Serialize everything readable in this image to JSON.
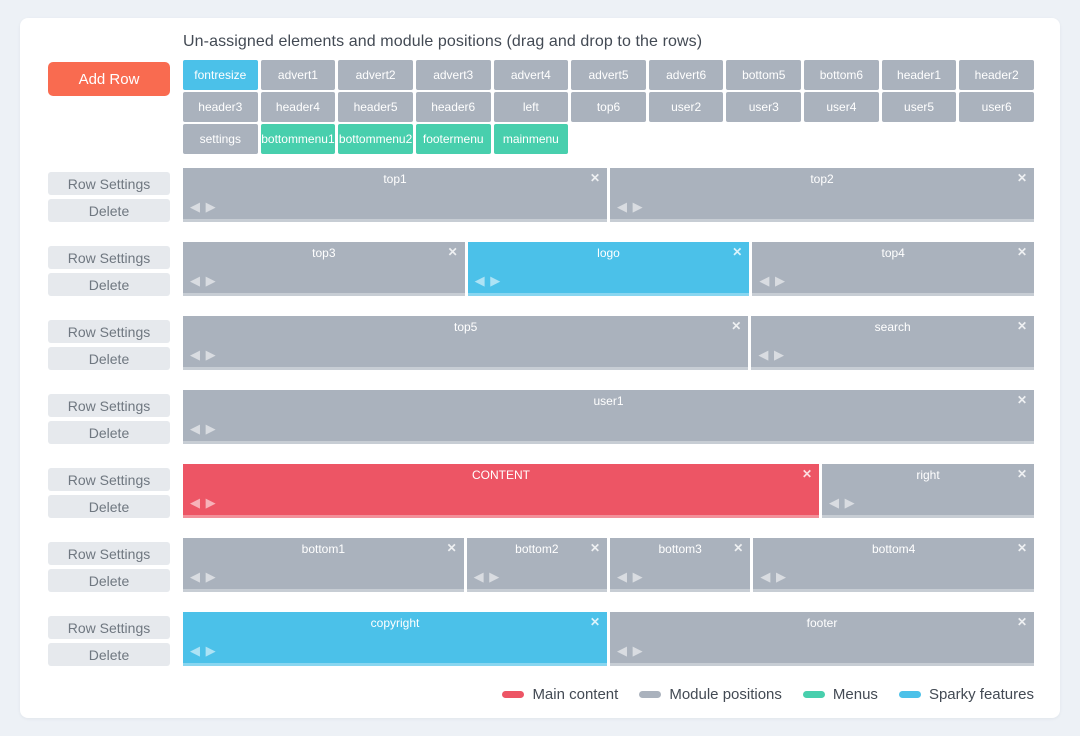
{
  "page": {
    "title": "Un-assigned elements and module positions (drag and drop to the rows)"
  },
  "colors": {
    "content": "#ed5565",
    "position": "#aab2bd",
    "menu": "#48cfad",
    "sparky": "#4bc1e9",
    "add_row": "#f96b50"
  },
  "icons": {
    "close": "✕",
    "move_left": "◀",
    "move_right": "▶"
  },
  "toolbar": {
    "add_row_label": "Add Row"
  },
  "row_controls": {
    "settings_label": "Row Settings",
    "delete_label": "Delete"
  },
  "unassigned": {
    "items": [
      {
        "label": "fontresize",
        "type": "sparky"
      },
      {
        "label": "advert1",
        "type": "position"
      },
      {
        "label": "advert2",
        "type": "position"
      },
      {
        "label": "advert3",
        "type": "position"
      },
      {
        "label": "advert4",
        "type": "position"
      },
      {
        "label": "advert5",
        "type": "position"
      },
      {
        "label": "advert6",
        "type": "position"
      },
      {
        "label": "bottom5",
        "type": "position"
      },
      {
        "label": "bottom6",
        "type": "position"
      },
      {
        "label": "header1",
        "type": "position"
      },
      {
        "label": "header2",
        "type": "position"
      },
      {
        "label": "header3",
        "type": "position"
      },
      {
        "label": "header4",
        "type": "position"
      },
      {
        "label": "header5",
        "type": "position"
      },
      {
        "label": "header6",
        "type": "position"
      },
      {
        "label": "left",
        "type": "position"
      },
      {
        "label": "top6",
        "type": "position"
      },
      {
        "label": "user2",
        "type": "position"
      },
      {
        "label": "user3",
        "type": "position"
      },
      {
        "label": "user4",
        "type": "position"
      },
      {
        "label": "user5",
        "type": "position"
      },
      {
        "label": "user6",
        "type": "position"
      },
      {
        "label": "settings",
        "type": "position"
      },
      {
        "label": "bottommenu1",
        "type": "menu"
      },
      {
        "label": "bottommenu2",
        "type": "menu"
      },
      {
        "label": "footermenu",
        "type": "menu"
      },
      {
        "label": "mainmenu",
        "type": "menu"
      }
    ]
  },
  "rows": [
    {
      "modules": [
        {
          "label": "top1",
          "type": "position",
          "span": 6
        },
        {
          "label": "top2",
          "type": "position",
          "span": 6
        }
      ]
    },
    {
      "modules": [
        {
          "label": "top3",
          "type": "position",
          "span": 4
        },
        {
          "label": "logo",
          "type": "sparky",
          "span": 4
        },
        {
          "label": "top4",
          "type": "position",
          "span": 4
        }
      ]
    },
    {
      "modules": [
        {
          "label": "top5",
          "type": "position",
          "span": 8
        },
        {
          "label": "search",
          "type": "position",
          "span": 4
        }
      ]
    },
    {
      "modules": [
        {
          "label": "user1",
          "type": "position",
          "span": 12
        }
      ]
    },
    {
      "modules": [
        {
          "label": "CONTENT",
          "type": "content",
          "span": 9
        },
        {
          "label": "right",
          "type": "position",
          "span": 3
        }
      ]
    },
    {
      "modules": [
        {
          "label": "bottom1",
          "type": "position",
          "span": 4
        },
        {
          "label": "bottom2",
          "type": "position",
          "span": 2
        },
        {
          "label": "bottom3",
          "type": "position",
          "span": 2
        },
        {
          "label": "bottom4",
          "type": "position",
          "span": 4
        }
      ]
    },
    {
      "modules": [
        {
          "label": "copyright",
          "type": "sparky",
          "span": 6
        },
        {
          "label": "footer",
          "type": "position",
          "span": 6
        }
      ]
    }
  ],
  "legend": {
    "items": [
      {
        "label": "Main content",
        "color": "#ed5565"
      },
      {
        "label": "Module positions",
        "color": "#aab2bd"
      },
      {
        "label": "Menus",
        "color": "#48cfad"
      },
      {
        "label": "Sparky features",
        "color": "#4bc1e9"
      }
    ]
  }
}
